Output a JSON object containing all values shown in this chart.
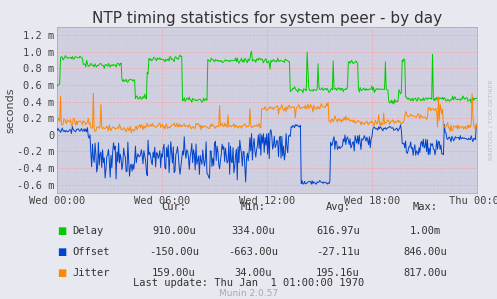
{
  "title": "NTP timing statistics for system peer - by day",
  "ylabel": "seconds",
  "background_color": "#e8e8f0",
  "plot_bg_color": "#d0d0e0",
  "grid_color_major": "#ff9999",
  "grid_color_minor": "#c8c8e8",
  "ylim": [
    -0.7,
    1.3
  ],
  "yticks": [
    -0.6,
    -0.4,
    -0.2,
    0.0,
    0.2,
    0.4,
    0.6,
    0.8,
    1.0,
    1.2
  ],
  "ytick_labels": [
    "-0.6 m",
    "-0.4 m",
    "-0.2 m",
    "0",
    "0.2 m",
    "0.4 m",
    "0.6 m",
    "0.8 m",
    "1.0 m",
    "1.2 m"
  ],
  "xtick_labels": [
    "Wed 00:00",
    "Wed 06:00",
    "Wed 12:00",
    "Wed 18:00",
    "Thu 00:00"
  ],
  "delay_color": "#00cc00",
  "offset_color": "#0044cc",
  "jitter_color": "#ff8800",
  "title_fontsize": 11,
  "axis_fontsize": 8,
  "tick_fontsize": 7.5,
  "stats_fontsize": 7.5,
  "stats_rows": [
    {
      "label": "Delay",
      "cur": "910.00u",
      "min": "334.00u",
      "avg": "616.97u",
      "max": "1.00m"
    },
    {
      "label": "Offset",
      "cur": "-150.00u",
      "min": "-663.00u",
      "avg": "-27.11u",
      "max": "846.00u"
    },
    {
      "label": "Jitter",
      "cur": "159.00u",
      "min": "34.00u",
      "avg": "195.16u",
      "max": "817.00u"
    }
  ],
  "stats_header": [
    "Cur:",
    "Min:",
    "Avg:",
    "Max:"
  ],
  "last_update": "Last update: Thu Jan  1 01:00:00 1970",
  "munin_version": "Munin 2.0.57",
  "rrdtool_label": "RRDTOOL / TOBI OETIKER",
  "seed": 42,
  "n_points": 500
}
